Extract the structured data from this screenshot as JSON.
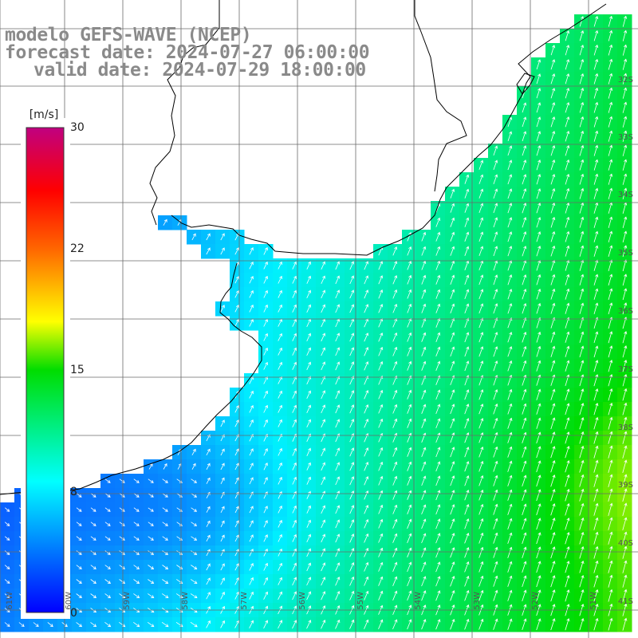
{
  "title": {
    "line1": "modelo GEFS-WAVE (NCEP)",
    "line2": "forecast date: 2024-07-27 06:00:00",
    "line3": "valid date: 2024-07-29 18:00:00"
  },
  "colorbar": {
    "unit": "[m/s]",
    "min": 0,
    "max": 30,
    "tick_labels": [
      "30",
      "22",
      "15",
      "8",
      "0"
    ],
    "tick_values": [
      30,
      22,
      15,
      8,
      0
    ]
  },
  "axes": {
    "lat_labels": [
      "32S",
      "33S",
      "34S",
      "35S",
      "36S",
      "37S",
      "38S",
      "39S",
      "40S",
      "41S"
    ],
    "lon_labels": [
      "61W",
      "60W",
      "59W",
      "58W",
      "57W",
      "56W",
      "55W",
      "54W",
      "53W",
      "52W",
      "51W"
    ]
  },
  "colors": {
    "calm": "#0022ff",
    "low": "#1a7aff",
    "mid": "#00e8ff",
    "moderate": "#00ee00",
    "high": "#c8ff00",
    "land": "#ffffff",
    "coastline": "#000000",
    "grid": "#6a6a6a",
    "arrows": "#ffffff"
  },
  "map_field": {
    "variable": "wind speed",
    "unit": "m/s",
    "speed_range": [
      2,
      17
    ],
    "prevailing_direction": "toward northeast"
  }
}
